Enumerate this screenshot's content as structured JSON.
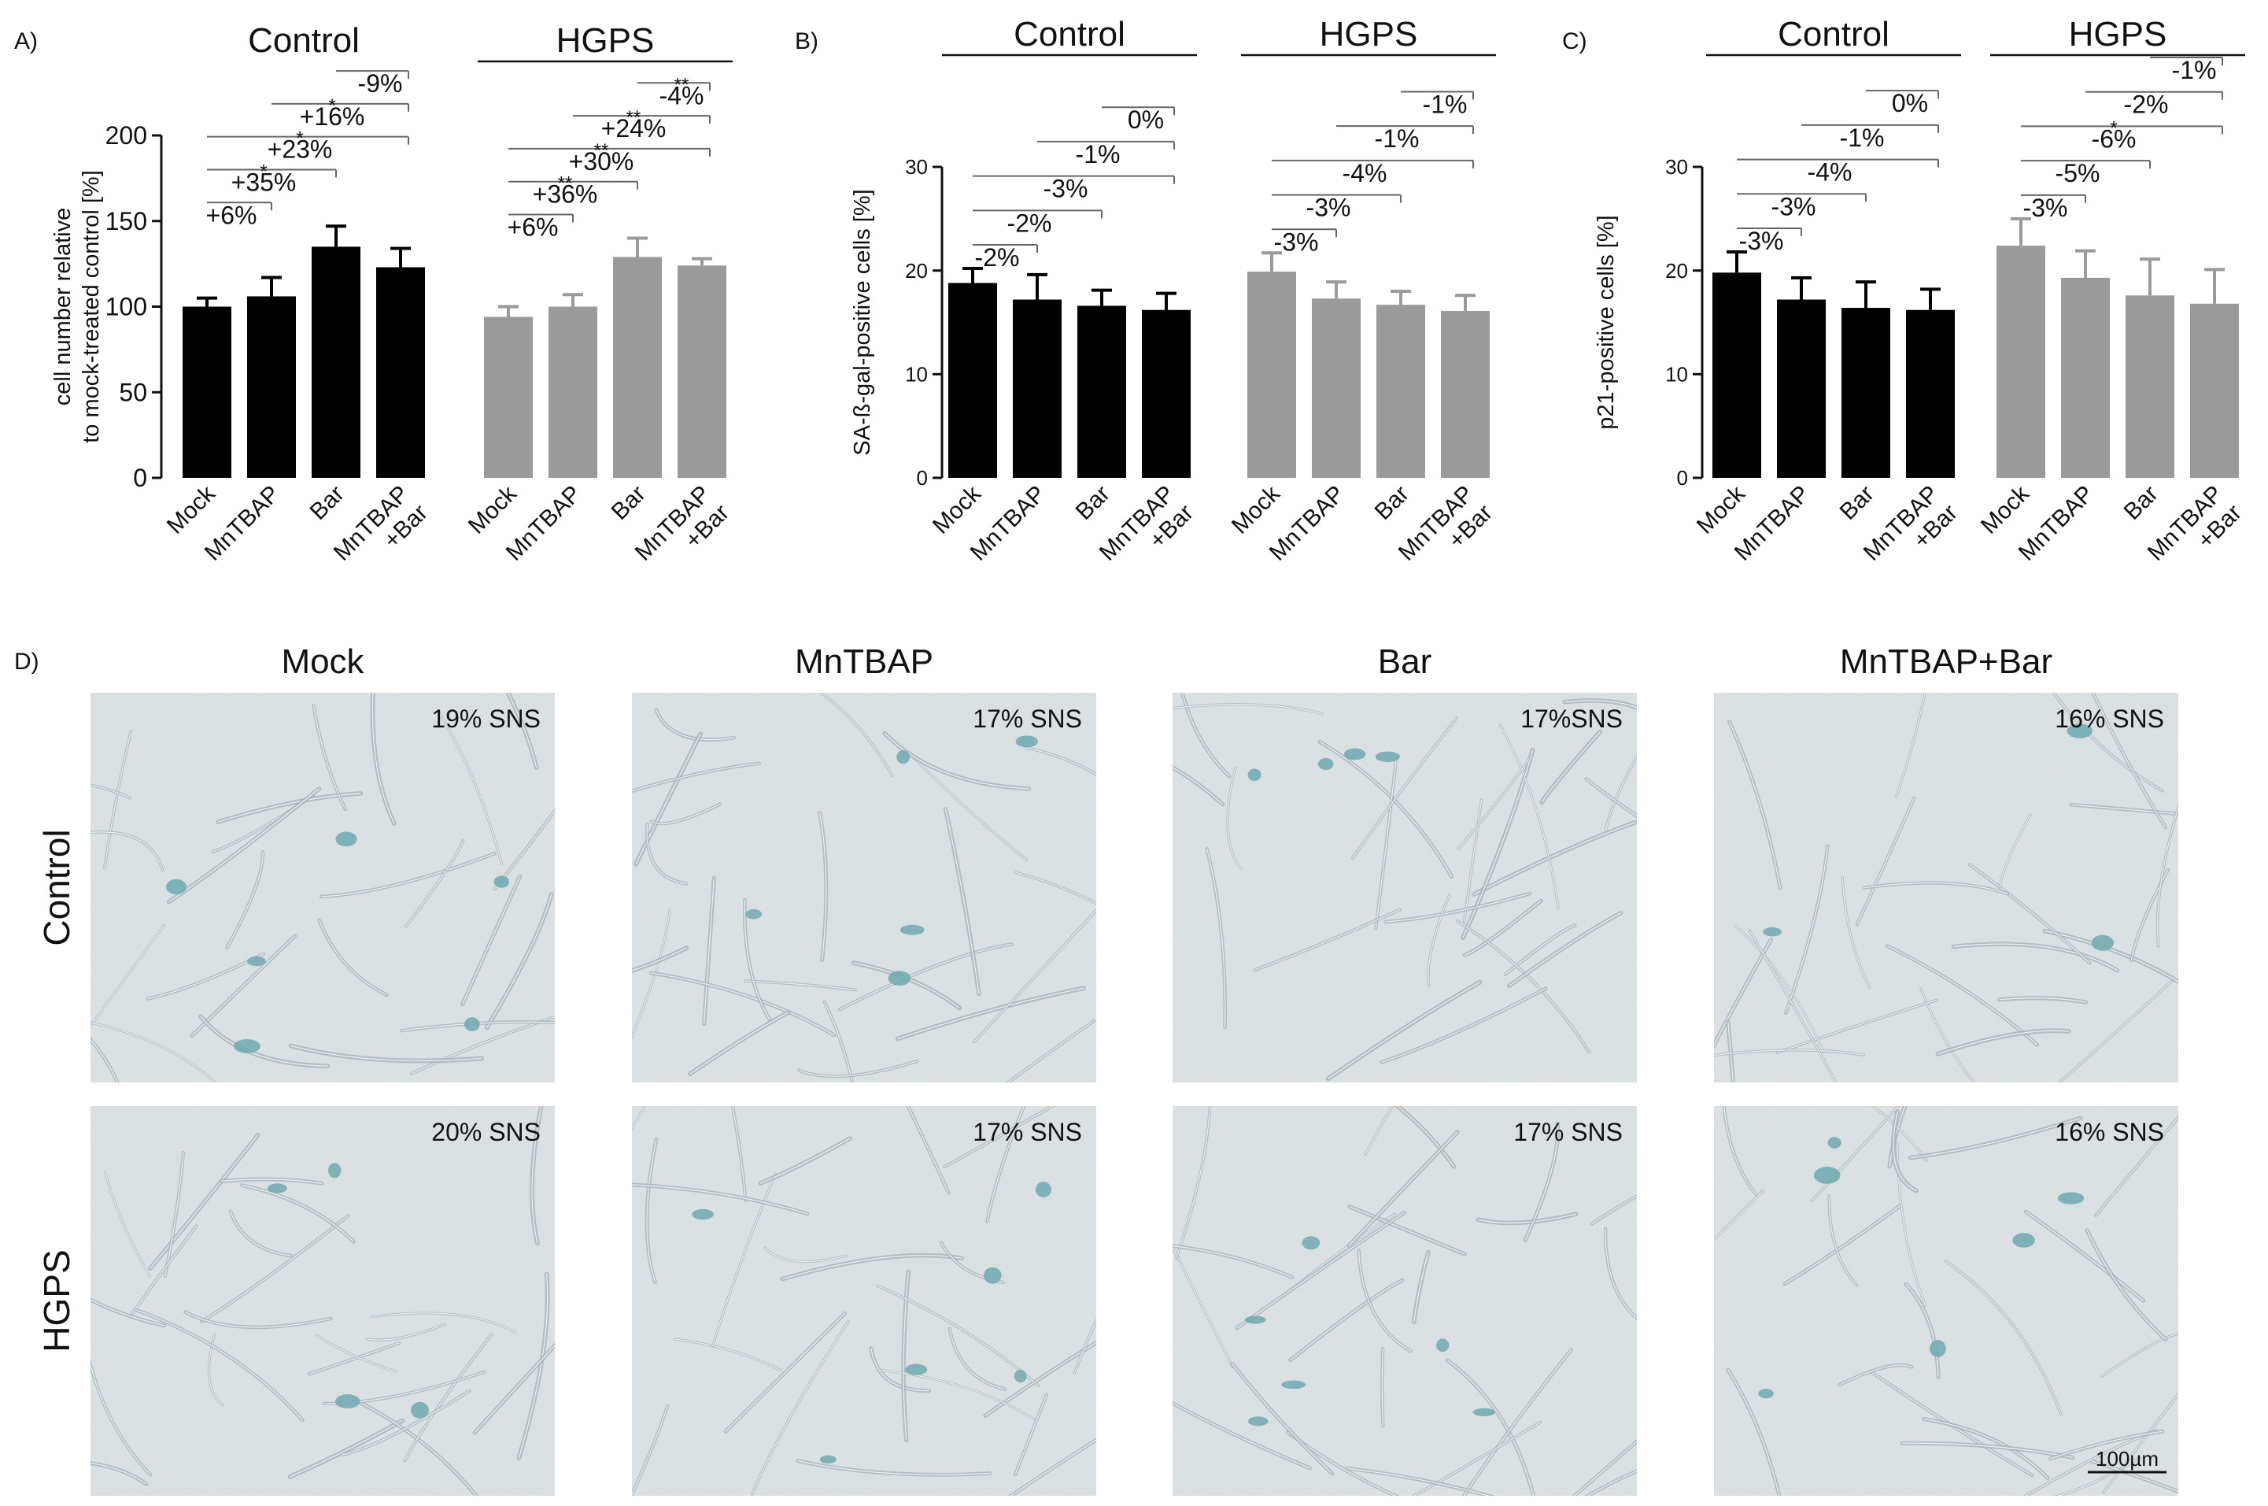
{
  "panel_labels": [
    "A)",
    "B)",
    "C)",
    "D)"
  ],
  "chart_data": [
    {
      "type": "bar",
      "panel": "A)",
      "title": "",
      "ylabel": "cell number relative\nto mock-treated control [%]",
      "ylim": [
        0,
        200
      ],
      "yticks": [
        0,
        50,
        100,
        150,
        200
      ],
      "groups": [
        "Control",
        "HGPS"
      ],
      "categories": [
        "Mock",
        "MnTBAP",
        "Bar",
        "MnTBAP\n+Bar"
      ],
      "series": [
        {
          "group": "Control",
          "color": "#000000",
          "values": [
            100,
            106,
            135,
            123
          ],
          "errors": [
            5,
            11,
            12,
            11
          ]
        },
        {
          "group": "HGPS",
          "color": "#9a9a9a",
          "values": [
            94,
            100,
            129,
            124
          ],
          "errors": [
            6,
            7,
            11,
            4
          ]
        }
      ],
      "comparisons": [
        {
          "group": 0,
          "from": 0,
          "to": 1,
          "text": "+6%",
          "stars": ""
        },
        {
          "group": 0,
          "from": 0,
          "to": 2,
          "text": "+35%",
          "stars": "*"
        },
        {
          "group": 0,
          "from": 0,
          "to": 3,
          "text": "+23%",
          "stars": "*"
        },
        {
          "group": 0,
          "from": 1,
          "to": 3,
          "text": "+16%",
          "stars": "*"
        },
        {
          "group": 0,
          "from": 2,
          "to": 3,
          "text": "-9%",
          "stars": ""
        },
        {
          "group": 1,
          "from": 0,
          "to": 1,
          "text": "+6%",
          "stars": ""
        },
        {
          "group": 1,
          "from": 0,
          "to": 2,
          "text": "+36%",
          "stars": "**"
        },
        {
          "group": 1,
          "from": 0,
          "to": 3,
          "text": "+30%",
          "stars": "**"
        },
        {
          "group": 1,
          "from": 1,
          "to": 3,
          "text": "+24%",
          "stars": "**"
        },
        {
          "group": 1,
          "from": 2,
          "to": 3,
          "text": "-4%",
          "stars": "**"
        }
      ]
    },
    {
      "type": "bar",
      "panel": "B)",
      "title": "",
      "ylabel": "SA-ß-gal-positive cells [%]",
      "ylim": [
        0,
        30
      ],
      "yticks": [
        0,
        10,
        20,
        30
      ],
      "groups": [
        "Control",
        "HGPS"
      ],
      "categories": [
        "Mock",
        "MnTBAP",
        "Bar",
        "MnTBAP\n+Bar"
      ],
      "series": [
        {
          "group": "Control",
          "color": "#000000",
          "values": [
            18.8,
            17.2,
            16.6,
            16.2
          ],
          "errors": [
            1.4,
            2.4,
            1.5,
            1.6
          ]
        },
        {
          "group": "HGPS",
          "color": "#9a9a9a",
          "values": [
            19.9,
            17.3,
            16.7,
            16.1
          ],
          "errors": [
            1.8,
            1.6,
            1.3,
            1.5
          ]
        }
      ],
      "comparisons": [
        {
          "group": 0,
          "from": 0,
          "to": 1,
          "text": "-2%",
          "stars": ""
        },
        {
          "group": 0,
          "from": 0,
          "to": 2,
          "text": "-2%",
          "stars": ""
        },
        {
          "group": 0,
          "from": 0,
          "to": 3,
          "text": "-3%",
          "stars": ""
        },
        {
          "group": 0,
          "from": 1,
          "to": 3,
          "text": "-1%",
          "stars": ""
        },
        {
          "group": 0,
          "from": 2,
          "to": 3,
          "text": "0%",
          "stars": ""
        },
        {
          "group": 1,
          "from": 0,
          "to": 1,
          "text": "-3%",
          "stars": ""
        },
        {
          "group": 1,
          "from": 0,
          "to": 2,
          "text": "-3%",
          "stars": ""
        },
        {
          "group": 1,
          "from": 0,
          "to": 3,
          "text": "-4%",
          "stars": ""
        },
        {
          "group": 1,
          "from": 1,
          "to": 3,
          "text": "-1%",
          "stars": ""
        },
        {
          "group": 1,
          "from": 2,
          "to": 3,
          "text": "-1%",
          "stars": ""
        }
      ]
    },
    {
      "type": "bar",
      "panel": "C)",
      "title": "",
      "ylabel": "p21-positive cells [%]",
      "ylim": [
        0,
        30
      ],
      "yticks": [
        0,
        10,
        20,
        30
      ],
      "groups": [
        "Control",
        "HGPS"
      ],
      "categories": [
        "Mock",
        "MnTBAP",
        "Bar",
        "MnTBAP\n+Bar"
      ],
      "series": [
        {
          "group": "Control",
          "color": "#000000",
          "values": [
            19.8,
            17.2,
            16.4,
            16.2
          ],
          "errors": [
            2.0,
            2.1,
            2.5,
            2.0
          ]
        },
        {
          "group": "HGPS",
          "color": "#9a9a9a",
          "values": [
            22.4,
            19.3,
            17.6,
            16.8
          ],
          "errors": [
            2.6,
            2.6,
            3.5,
            3.3
          ]
        }
      ],
      "comparisons": [
        {
          "group": 0,
          "from": 0,
          "to": 1,
          "text": "-3%",
          "stars": ""
        },
        {
          "group": 0,
          "from": 0,
          "to": 2,
          "text": "-3%",
          "stars": ""
        },
        {
          "group": 0,
          "from": 0,
          "to": 3,
          "text": "-4%",
          "stars": ""
        },
        {
          "group": 0,
          "from": 1,
          "to": 3,
          "text": "-1%",
          "stars": ""
        },
        {
          "group": 0,
          "from": 2,
          "to": 3,
          "text": "0%",
          "stars": ""
        },
        {
          "group": 1,
          "from": 0,
          "to": 1,
          "text": "-3%",
          "stars": ""
        },
        {
          "group": 1,
          "from": 0,
          "to": 2,
          "text": "-5%",
          "stars": ""
        },
        {
          "group": 1,
          "from": 0,
          "to": 3,
          "text": "-6%",
          "stars": "*"
        },
        {
          "group": 1,
          "from": 1,
          "to": 3,
          "text": "-2%",
          "stars": ""
        },
        {
          "group": 1,
          "from": 2,
          "to": 3,
          "text": "-1%",
          "stars": ""
        }
      ]
    }
  ],
  "micrographs": {
    "columns": [
      "Mock",
      "MnTBAP",
      "Bar",
      "MnTBAP+Bar"
    ],
    "rows": [
      "Control",
      "HGPS"
    ],
    "labels": [
      [
        "19% SNS",
        "17% SNS",
        "17%SNS",
        "16% SNS"
      ],
      [
        "20% SNS",
        "17% SNS",
        "17% SNS",
        "16% SNS"
      ]
    ],
    "scale_bar": "100µm",
    "background_color": "#dfe4e7",
    "cell_color": "#6fa9b0"
  }
}
